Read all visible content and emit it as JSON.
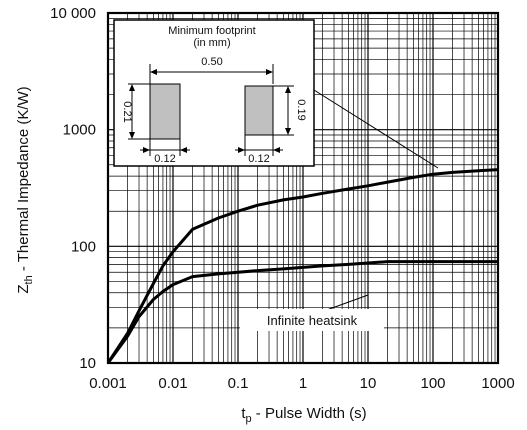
{
  "chart_data": {
    "type": "line",
    "xscale": "log",
    "yscale": "log",
    "xlim": [
      0.001,
      1000
    ],
    "ylim": [
      10,
      10000
    ],
    "grid": true,
    "xlabel": {
      "main": "t",
      "sub": "p",
      "rest": " - Pulse Width (s)"
    },
    "ylabel": {
      "main": "Z",
      "sub": "th",
      "rest": " - Thermal Impedance (K/W)"
    },
    "x_tick_labels": [
      {
        "v": 0.001,
        "t": "0.001"
      },
      {
        "v": 0.01,
        "t": "0.01"
      },
      {
        "v": 0.1,
        "t": "0.1"
      },
      {
        "v": 1,
        "t": "1"
      },
      {
        "v": 10,
        "t": "10"
      },
      {
        "v": 100,
        "t": "100"
      },
      {
        "v": 1000,
        "t": "1000"
      }
    ],
    "y_tick_labels": [
      {
        "v": 10,
        "t": "10"
      },
      {
        "v": 100,
        "t": "100"
      },
      {
        "v": 1000,
        "t": "1000"
      },
      {
        "v": 10000,
        "t": "10 000"
      }
    ],
    "series": [
      {
        "x": [
          0.001,
          0.002,
          0.003,
          0.005,
          0.007,
          0.01,
          0.02,
          0.05,
          0.1,
          0.2,
          0.5,
          1,
          2,
          5,
          10,
          20,
          50,
          100,
          200,
          500,
          1000
        ],
        "y": [
          10,
          18,
          28,
          48,
          68,
          90,
          140,
          175,
          200,
          225,
          250,
          265,
          285,
          310,
          330,
          355,
          390,
          415,
          430,
          445,
          455
        ]
      },
      {
        "x": [
          0.001,
          0.002,
          0.003,
          0.005,
          0.007,
          0.01,
          0.02,
          0.05,
          0.1,
          0.2,
          0.5,
          1,
          2,
          5,
          10,
          20,
          50,
          100,
          200,
          500,
          1000
        ],
        "y": [
          10,
          17,
          25,
          35,
          41,
          47,
          55,
          58,
          60,
          62,
          64,
          66,
          68,
          70,
          72,
          74,
          74,
          74,
          74,
          74,
          74
        ]
      }
    ],
    "annotations": {
      "callout_label": "Infinite heatsink",
      "inset": {
        "title_line1": "Minimum footprint",
        "title_line2": "(in mm)",
        "span": "0.50",
        "left_height": "0.21",
        "right_height": "0.19",
        "left_width": "0.12",
        "right_width": "0.12",
        "pad_color": "#c0c0c0"
      }
    }
  }
}
